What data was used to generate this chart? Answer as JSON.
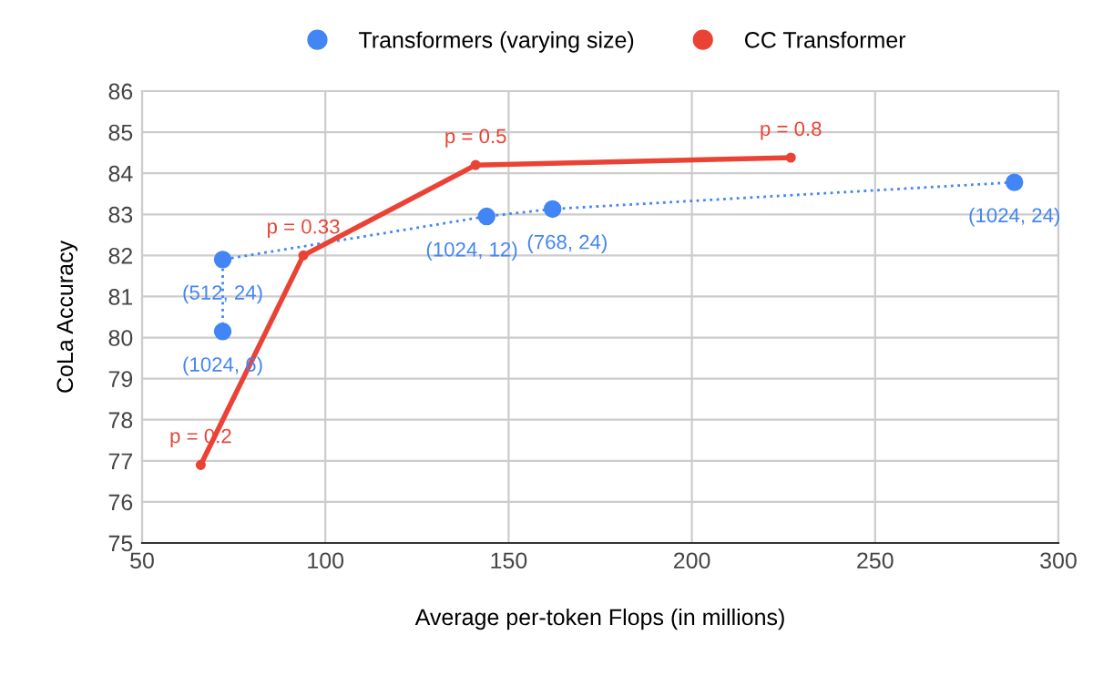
{
  "chart_data": {
    "type": "line",
    "xlabel": "Average per-token Flops (in millions)",
    "ylabel": "CoLa Accuracy",
    "xlim": [
      50,
      300
    ],
    "xticks": [
      50,
      100,
      150,
      200,
      250,
      300
    ],
    "ylim": [
      75,
      86
    ],
    "yticks": [
      75,
      76,
      77,
      78,
      79,
      80,
      81,
      82,
      83,
      84,
      85,
      86
    ],
    "grid": true,
    "legend": "top",
    "series": [
      {
        "name": "Transformers (varying size)",
        "color": "#4285f4",
        "marker": "circle",
        "line_style": "dotted",
        "x": [
          72,
          72,
          144,
          162,
          288
        ],
        "values": [
          80.15,
          81.9,
          82.95,
          83.13,
          83.78
        ]
      },
      {
        "name": "CC Transformer",
        "color": "#ea4335",
        "marker": "circle",
        "line_style": "solid",
        "x": [
          66,
          94,
          141,
          227
        ],
        "values": [
          76.9,
          82.0,
          84.2,
          84.38
        ]
      }
    ],
    "annotations": [
      {
        "text": "(1024, 6)",
        "x": 72,
        "y": 80.15
      },
      {
        "text": "(512, 24)",
        "x": 72,
        "y": 81.9
      },
      {
        "text": "(1024, 12)",
        "x": 144,
        "y": 82.95
      },
      {
        "text": "(768, 24)",
        "x": 162,
        "y": 83.13
      },
      {
        "text": "(1024, 24)",
        "x": 288,
        "y": 83.78
      },
      {
        "text": "p = 0.2",
        "x": 66,
        "y": 76.9
      },
      {
        "text": "p = 0.33",
        "x": 94,
        "y": 82.0
      },
      {
        "text": "p = 0.5",
        "x": 141,
        "y": 84.2
      },
      {
        "text": "p = 0.8",
        "x": 227,
        "y": 84.38
      }
    ]
  }
}
